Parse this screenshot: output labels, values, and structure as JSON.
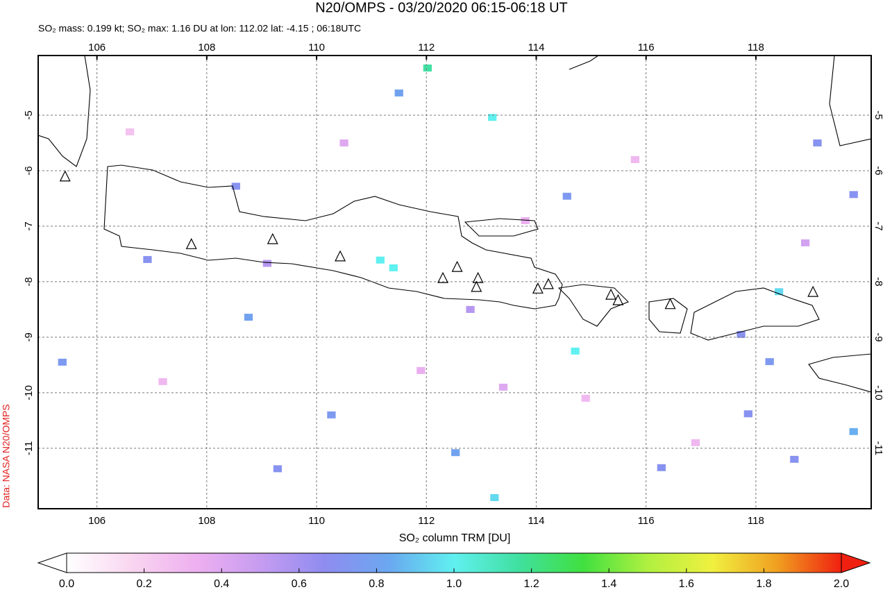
{
  "chart_data": {
    "type": "map",
    "title": "N20/OMPS - 03/20/2020 06:15-06:18 UT",
    "subtitle": "SO₂ mass: 0.199 kt; SO₂ max: 1.16 DU at lon: 112.02 lat: -4.15 ; 06:18UTC",
    "side_label": "Data: NASA N20/OMPS",
    "colorbar_label": "SO₂ column TRM [DU]",
    "xlim": [
      104.93,
      120.1
    ],
    "ylim": [
      -12.09,
      -3.925
    ],
    "xticks": [
      106,
      108,
      110,
      112,
      114,
      116,
      118
    ],
    "yticks": [
      -5,
      -6,
      -7,
      -8,
      -9,
      -10,
      -11
    ],
    "clim": [
      0,
      2
    ],
    "cticks": [
      {
        "value": 0,
        "label": "0.0"
      },
      {
        "value": 0.2,
        "label": "0.2"
      },
      {
        "value": 0.4,
        "label": "0.4"
      },
      {
        "value": 0.6,
        "label": "0.6"
      },
      {
        "value": 0.8,
        "label": "0.8"
      },
      {
        "value": 1,
        "label": "1.0"
      },
      {
        "value": 1.2,
        "label": "1.2"
      },
      {
        "value": 1.4,
        "label": "1.4"
      },
      {
        "value": 1.6,
        "label": "1.6"
      },
      {
        "value": 1.8,
        "label": "1.8"
      },
      {
        "value": 2,
        "label": "2.0"
      }
    ],
    "colorscale": [
      "#ffffff",
      "#f9d6f0",
      "#eeb0f0",
      "#c69cf0",
      "#8f8cf0",
      "#6aa8f0",
      "#60f0f0",
      "#40e0a0",
      "#40e040",
      "#b0f040",
      "#f0f040",
      "#f0a020",
      "#f02010"
    ],
    "grid": true,
    "pixels": [
      {
        "lon": 112.02,
        "lat": -4.15,
        "value": 1.16
      },
      {
        "lon": 113.2,
        "lat": -5.04,
        "value": 1.0
      },
      {
        "lon": 111.5,
        "lat": -4.6,
        "value": 0.8
      },
      {
        "lon": 111.16,
        "lat": -7.61,
        "value": 1.0
      },
      {
        "lon": 111.4,
        "lat": -7.75,
        "value": 1.0
      },
      {
        "lon": 114.71,
        "lat": -9.25,
        "value": 1.0
      },
      {
        "lon": 113.24,
        "lat": -11.89,
        "value": 0.95
      },
      {
        "lon": 118.42,
        "lat": -8.18,
        "value": 0.95
      },
      {
        "lon": 119.78,
        "lat": -10.7,
        "value": 0.85
      },
      {
        "lon": 119.12,
        "lat": -5.5,
        "value": 0.7
      },
      {
        "lon": 119.78,
        "lat": -6.43,
        "value": 0.7
      },
      {
        "lon": 105.37,
        "lat": -9.45,
        "value": 0.75
      },
      {
        "lon": 108.76,
        "lat": -8.64,
        "value": 0.8
      },
      {
        "lon": 112.53,
        "lat": -11.08,
        "value": 0.8
      },
      {
        "lon": 114.56,
        "lat": -6.46,
        "value": 0.75
      },
      {
        "lon": 110.27,
        "lat": -10.4,
        "value": 0.75
      },
      {
        "lon": 118.25,
        "lat": -9.44,
        "value": 0.75
      },
      {
        "lon": 118.7,
        "lat": -11.2,
        "value": 0.7
      },
      {
        "lon": 116.28,
        "lat": -11.35,
        "value": 0.7
      },
      {
        "lon": 109.29,
        "lat": -11.37,
        "value": 0.7
      },
      {
        "lon": 106.92,
        "lat": -7.6,
        "value": 0.7
      },
      {
        "lon": 108.53,
        "lat": -6.28,
        "value": 0.7
      },
      {
        "lon": 117.73,
        "lat": -8.95,
        "value": 0.7
      },
      {
        "lon": 117.86,
        "lat": -10.38,
        "value": 0.7
      },
      {
        "lon": 109.1,
        "lat": -7.67,
        "value": 0.55
      },
      {
        "lon": 110.5,
        "lat": -5.5,
        "value": 0.4
      },
      {
        "lon": 113.8,
        "lat": -6.9,
        "value": 0.35
      },
      {
        "lon": 115.8,
        "lat": -5.8,
        "value": 0.3
      },
      {
        "lon": 107.2,
        "lat": -9.8,
        "value": 0.3
      },
      {
        "lon": 111.9,
        "lat": -9.6,
        "value": 0.35
      },
      {
        "lon": 116.9,
        "lat": -10.9,
        "value": 0.3
      },
      {
        "lon": 118.9,
        "lat": -7.3,
        "value": 0.45
      },
      {
        "lon": 106.6,
        "lat": -5.3,
        "value": 0.25
      },
      {
        "lon": 114.9,
        "lat": -10.1,
        "value": 0.3
      },
      {
        "lon": 112.8,
        "lat": -8.5,
        "value": 0.55
      },
      {
        "lon": 113.4,
        "lat": -9.9,
        "value": 0.4
      }
    ],
    "volcanoes": [
      {
        "lon": 105.42,
        "lat": -6.11
      },
      {
        "lon": 107.72,
        "lat": -7.33
      },
      {
        "lon": 109.2,
        "lat": -7.24
      },
      {
        "lon": 110.43,
        "lat": -7.55
      },
      {
        "lon": 112.3,
        "lat": -7.94
      },
      {
        "lon": 112.56,
        "lat": -7.74
      },
      {
        "lon": 112.94,
        "lat": -7.94
      },
      {
        "lon": 112.91,
        "lat": -8.1
      },
      {
        "lon": 114.03,
        "lat": -8.13
      },
      {
        "lon": 114.22,
        "lat": -8.05
      },
      {
        "lon": 115.36,
        "lat": -8.24
      },
      {
        "lon": 115.49,
        "lat": -8.34
      },
      {
        "lon": 116.44,
        "lat": -8.41
      },
      {
        "lon": 119.04,
        "lat": -8.19
      }
    ]
  }
}
